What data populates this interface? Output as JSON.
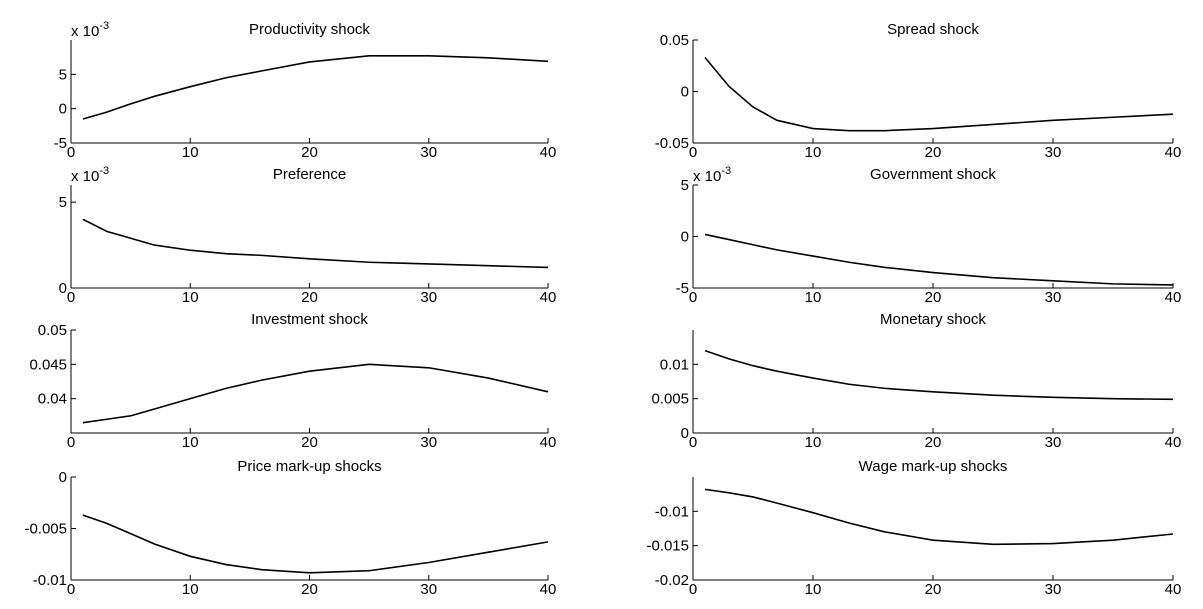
{
  "chart_data": [
    {
      "type": "line",
      "title": "Productivity shock",
      "y_multiplier": "x 10",
      "y_multiplier_exponent": "-3",
      "x": [
        1,
        3,
        5,
        7,
        10,
        13,
        16,
        20,
        25,
        30,
        35,
        40
      ],
      "values": [
        -1.5,
        -0.5,
        0.7,
        1.8,
        3.2,
        4.5,
        5.5,
        6.8,
        7.7,
        7.7,
        7.4,
        6.9
      ],
      "color": "#000000",
      "xlim": [
        0,
        40
      ],
      "xticks": [
        0,
        10,
        20,
        30,
        40
      ],
      "ylim": [
        -5,
        10
      ],
      "yticks": [
        -5,
        0,
        5
      ]
    },
    {
      "type": "line",
      "title": "Spread shock",
      "x": [
        1,
        3,
        5,
        7,
        10,
        13,
        16,
        20,
        25,
        30,
        35,
        40
      ],
      "values": [
        0.033,
        0.005,
        -0.015,
        -0.028,
        -0.036,
        -0.038,
        -0.038,
        -0.036,
        -0.032,
        -0.028,
        -0.025,
        -0.022
      ],
      "color": "#000000",
      "xlim": [
        0,
        40
      ],
      "xticks": [
        0,
        10,
        20,
        30,
        40
      ],
      "ylim": [
        -0.05,
        0.05
      ],
      "yticks": [
        -0.05,
        0,
        0.05
      ]
    },
    {
      "type": "line",
      "title": "Preference",
      "y_multiplier": "x 10",
      "y_multiplier_exponent": "-3",
      "x": [
        1,
        3,
        5,
        7,
        10,
        13,
        16,
        20,
        25,
        30,
        35,
        40
      ],
      "values": [
        4.0,
        3.3,
        2.9,
        2.5,
        2.2,
        2.0,
        1.9,
        1.7,
        1.5,
        1.4,
        1.3,
        1.2
      ],
      "color": "#000000",
      "xlim": [
        0,
        40
      ],
      "xticks": [
        0,
        10,
        20,
        30,
        40
      ],
      "ylim": [
        0,
        6
      ],
      "yticks": [
        0,
        5
      ]
    },
    {
      "type": "line",
      "title": "Government shock",
      "y_multiplier": "x 10",
      "y_multiplier_exponent": "-3",
      "x": [
        1,
        3,
        5,
        7,
        10,
        13,
        16,
        20,
        25,
        30,
        35,
        40
      ],
      "values": [
        0.2,
        -0.3,
        -0.8,
        -1.3,
        -1.9,
        -2.5,
        -3.0,
        -3.5,
        -4.0,
        -4.3,
        -4.6,
        -4.7
      ],
      "color": "#000000",
      "xlim": [
        0,
        40
      ],
      "xticks": [
        0,
        10,
        20,
        30,
        40
      ],
      "ylim": [
        -5,
        5
      ],
      "yticks": [
        -5,
        0,
        5
      ]
    },
    {
      "type": "line",
      "title": "Investment shock",
      "x": [
        1,
        3,
        5,
        7,
        10,
        13,
        16,
        20,
        25,
        30,
        35,
        40
      ],
      "values": [
        0.0365,
        0.037,
        0.0375,
        0.0385,
        0.04,
        0.0415,
        0.0427,
        0.044,
        0.045,
        0.0445,
        0.043,
        0.041
      ],
      "color": "#000000",
      "xlim": [
        0,
        40
      ],
      "xticks": [
        0,
        10,
        20,
        30,
        40
      ],
      "ylim": [
        0.035,
        0.05
      ],
      "yticks": [
        0.04,
        0.045,
        0.05
      ]
    },
    {
      "type": "line",
      "title": "Monetary shock",
      "x": [
        1,
        3,
        5,
        7,
        10,
        13,
        16,
        20,
        25,
        30,
        35,
        40
      ],
      "values": [
        0.012,
        0.0108,
        0.0098,
        0.009,
        0.008,
        0.0071,
        0.0065,
        0.006,
        0.0055,
        0.0052,
        0.005,
        0.0049
      ],
      "color": "#000000",
      "xlim": [
        0,
        40
      ],
      "xticks": [
        0,
        10,
        20,
        30,
        40
      ],
      "ylim": [
        0,
        0.015
      ],
      "yticks": [
        0,
        0.005,
        0.01
      ]
    },
    {
      "type": "line",
      "title": "Price mark-up shocks",
      "x": [
        1,
        3,
        5,
        7,
        10,
        13,
        16,
        20,
        25,
        30,
        35,
        40
      ],
      "values": [
        -0.0037,
        -0.0045,
        -0.0055,
        -0.0065,
        -0.0077,
        -0.0085,
        -0.009,
        -0.0093,
        -0.0091,
        -0.0083,
        -0.0073,
        -0.0063
      ],
      "color": "#000000",
      "xlim": [
        0,
        40
      ],
      "xticks": [
        0,
        10,
        20,
        30,
        40
      ],
      "ylim": [
        -0.01,
        0
      ],
      "yticks": [
        -0.01,
        -0.005,
        0
      ]
    },
    {
      "type": "line",
      "title": "Wage mark-up shocks",
      "x": [
        1,
        3,
        5,
        7,
        10,
        13,
        16,
        20,
        25,
        30,
        35,
        40
      ],
      "values": [
        -0.0068,
        -0.0073,
        -0.0079,
        -0.0088,
        -0.0102,
        -0.0117,
        -0.013,
        -0.0142,
        -0.0148,
        -0.0147,
        -0.0142,
        -0.0133
      ],
      "color": "#000000",
      "xlim": [
        0,
        40
      ],
      "xticks": [
        0,
        10,
        20,
        30,
        40
      ],
      "ylim": [
        -0.02,
        -0.005
      ],
      "yticks": [
        -0.02,
        -0.015,
        -0.01
      ]
    }
  ]
}
